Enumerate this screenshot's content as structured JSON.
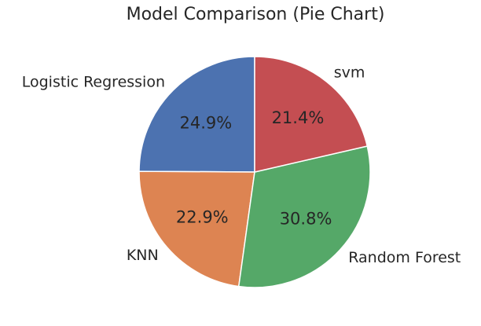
{
  "chart_data": {
    "type": "pie",
    "title": "Model Comparison (Pie Chart)",
    "start_angle_deg": 90,
    "direction": "counterclockwise",
    "slices": [
      {
        "label": "Logistic Regression",
        "value": 24.9,
        "pct_label": "24.9%",
        "color": "#4c72b0"
      },
      {
        "label": "KNN",
        "value": 22.9,
        "pct_label": "22.9%",
        "color": "#dd8452"
      },
      {
        "label": "Random Forest",
        "value": 30.8,
        "pct_label": "30.8%",
        "color": "#55a868"
      },
      {
        "label": "svm",
        "value": 21.4,
        "pct_label": "21.4%",
        "color": "#c44e52"
      }
    ]
  }
}
